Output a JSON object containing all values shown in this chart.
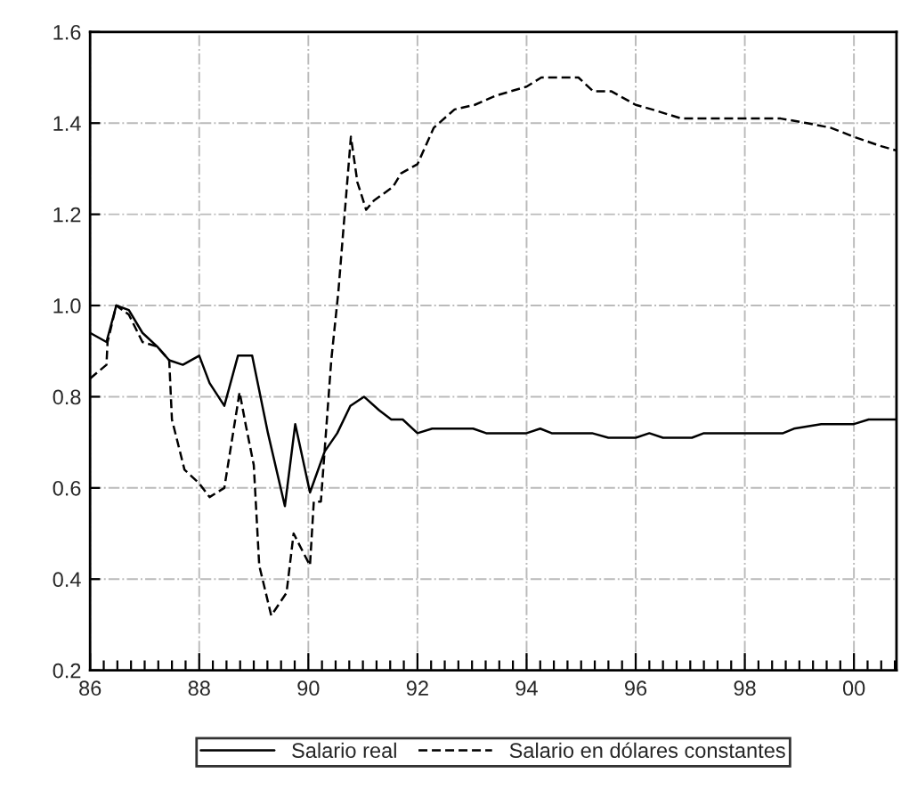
{
  "chart_data": {
    "type": "line",
    "xlim": [
      1986,
      2000.78
    ],
    "ylim": [
      0.2,
      1.6
    ],
    "xticks": [
      {
        "value": 1986,
        "label": "86"
      },
      {
        "value": 1986.25,
        "label": null
      },
      {
        "value": 1986.5,
        "label": null
      },
      {
        "value": 1986.75,
        "label": null
      },
      {
        "value": 1987,
        "label": null
      },
      {
        "value": 1987.25,
        "label": null
      },
      {
        "value": 1987.5,
        "label": null
      },
      {
        "value": 1987.75,
        "label": null
      },
      {
        "value": 1988,
        "label": "88"
      },
      {
        "value": 1988.25,
        "label": null
      },
      {
        "value": 1988.5,
        "label": null
      },
      {
        "value": 1988.75,
        "label": null
      },
      {
        "value": 1989,
        "label": null
      },
      {
        "value": 1989.25,
        "label": null
      },
      {
        "value": 1989.5,
        "label": null
      },
      {
        "value": 1989.75,
        "label": null
      },
      {
        "value": 1990,
        "label": "90"
      },
      {
        "value": 1990.25,
        "label": null
      },
      {
        "value": 1990.5,
        "label": null
      },
      {
        "value": 1990.75,
        "label": null
      },
      {
        "value": 1991,
        "label": null
      },
      {
        "value": 1991.25,
        "label": null
      },
      {
        "value": 1991.5,
        "label": null
      },
      {
        "value": 1991.75,
        "label": null
      },
      {
        "value": 1992,
        "label": "92"
      },
      {
        "value": 1992.25,
        "label": null
      },
      {
        "value": 1992.5,
        "label": null
      },
      {
        "value": 1992.75,
        "label": null
      },
      {
        "value": 1993,
        "label": null
      },
      {
        "value": 1993.25,
        "label": null
      },
      {
        "value": 1993.5,
        "label": null
      },
      {
        "value": 1993.75,
        "label": null
      },
      {
        "value": 1994,
        "label": "94"
      },
      {
        "value": 1994.25,
        "label": null
      },
      {
        "value": 1994.5,
        "label": null
      },
      {
        "value": 1994.75,
        "label": null
      },
      {
        "value": 1995,
        "label": null
      },
      {
        "value": 1995.25,
        "label": null
      },
      {
        "value": 1995.5,
        "label": null
      },
      {
        "value": 1995.75,
        "label": null
      },
      {
        "value": 1996,
        "label": "96"
      },
      {
        "value": 1996.25,
        "label": null
      },
      {
        "value": 1996.5,
        "label": null
      },
      {
        "value": 1996.75,
        "label": null
      },
      {
        "value": 1997,
        "label": null
      },
      {
        "value": 1997.25,
        "label": null
      },
      {
        "value": 1997.5,
        "label": null
      },
      {
        "value": 1997.75,
        "label": null
      },
      {
        "value": 1998,
        "label": "98"
      },
      {
        "value": 1998.25,
        "label": null
      },
      {
        "value": 1998.5,
        "label": null
      },
      {
        "value": 1998.75,
        "label": null
      },
      {
        "value": 1999,
        "label": null
      },
      {
        "value": 1999.25,
        "label": null
      },
      {
        "value": 1999.5,
        "label": null
      },
      {
        "value": 1999.75,
        "label": null
      },
      {
        "value": 2000,
        "label": "00"
      },
      {
        "value": 2000.25,
        "label": null
      },
      {
        "value": 2000.5,
        "label": null
      },
      {
        "value": 2000.75,
        "label": null
      }
    ],
    "yticks": [
      0.2,
      0.4,
      0.6,
      0.8,
      {
        "value": 1.0,
        "label": "1.0"
      },
      1.2,
      1.4,
      1.6
    ],
    "grid": true,
    "legend": "bottom",
    "series": [
      {
        "name": "Salario real",
        "color": "#000000",
        "line_style": "solid",
        "x": [
          1986.0,
          1986.3,
          1986.48,
          1986.71,
          1986.96,
          1987.23,
          1987.45,
          1987.7,
          1988.0,
          1988.19,
          1988.46,
          1988.71,
          1988.97,
          1989.26,
          1989.57,
          1989.76,
          1990.03,
          1990.3,
          1990.53,
          1990.77,
          1991.02,
          1991.3,
          1991.52,
          1991.73,
          1992.0,
          1992.27,
          1993.02,
          1993.26,
          1994.0,
          1994.25,
          1994.46,
          1995.2,
          1995.5,
          1996.0,
          1996.25,
          1996.5,
          1997.03,
          1997.25,
          1998.7,
          1998.9,
          1999.4,
          2000.0,
          2000.27,
          2000.78
        ],
        "values": [
          0.94,
          0.92,
          1.0,
          0.99,
          0.94,
          0.91,
          0.88,
          0.87,
          0.89,
          0.83,
          0.78,
          0.89,
          0.89,
          0.72,
          0.56,
          0.74,
          0.59,
          0.68,
          0.72,
          0.78,
          0.8,
          0.77,
          0.75,
          0.75,
          0.72,
          0.73,
          0.73,
          0.72,
          0.72,
          0.73,
          0.72,
          0.72,
          0.71,
          0.71,
          0.72,
          0.71,
          0.71,
          0.72,
          0.72,
          0.73,
          0.74,
          0.74,
          0.75,
          0.75
        ]
      },
      {
        "name": "Salario en dólares constantes",
        "color": "#000000",
        "line_style": "dashed",
        "x": [
          1986.0,
          1986.3,
          1986.32,
          1986.48,
          1986.71,
          1986.96,
          1987.23,
          1987.45,
          1987.5,
          1987.73,
          1988.0,
          1988.19,
          1988.46,
          1988.74,
          1988.85,
          1989.0,
          1989.1,
          1989.32,
          1989.6,
          1989.73,
          1989.9,
          1990.03,
          1990.1,
          1990.23,
          1990.42,
          1990.55,
          1990.78,
          1990.9,
          1991.06,
          1991.2,
          1991.55,
          1991.7,
          1992.0,
          1992.3,
          1992.68,
          1993.05,
          1993.43,
          1994.0,
          1994.27,
          1994.95,
          1995.22,
          1995.55,
          1996.0,
          1996.3,
          1996.84,
          1998.66,
          1999.14,
          1999.57,
          2000.0,
          2000.48,
          2000.78
        ],
        "values": [
          0.84,
          0.87,
          0.92,
          1.0,
          0.98,
          0.92,
          0.91,
          0.88,
          0.75,
          0.64,
          0.61,
          0.58,
          0.6,
          0.81,
          0.74,
          0.65,
          0.43,
          0.32,
          0.37,
          0.5,
          0.46,
          0.43,
          0.57,
          0.57,
          0.88,
          1.03,
          1.37,
          1.27,
          1.21,
          1.23,
          1.26,
          1.29,
          1.31,
          1.39,
          1.43,
          1.44,
          1.46,
          1.48,
          1.5,
          1.5,
          1.47,
          1.47,
          1.44,
          1.43,
          1.41,
          1.41,
          1.4,
          1.39,
          1.37,
          1.35,
          1.34
        ]
      }
    ]
  }
}
